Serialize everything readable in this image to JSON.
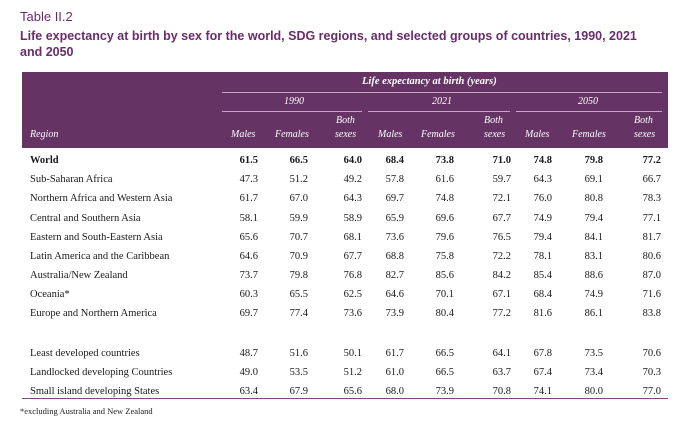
{
  "table_label": "Table II.2",
  "title": "Life expectancy at birth by sex for the world, SDG regions, and selected groups of countries, 1990, 2021 and 2050",
  "header": {
    "group_title": "Life expectancy at birth (years)",
    "years": [
      "1990",
      "2021",
      "2050"
    ],
    "region_label": "Region",
    "col_males": "Males",
    "col_females": "Females",
    "col_both_1": "Both",
    "col_both_2": "sexes"
  },
  "rows": [
    {
      "region": "World",
      "bold": true,
      "values": [
        "61.5",
        "66.5",
        "64.0",
        "68.4",
        "73.8",
        "71.0",
        "74.8",
        "79.8",
        "77.2"
      ]
    },
    {
      "region": "Sub-Saharan Africa",
      "values": [
        "47.3",
        "51.2",
        "49.2",
        "57.8",
        "61.6",
        "59.7",
        "64.3",
        "69.1",
        "66.7"
      ]
    },
    {
      "region": "Northern Africa and Western Asia",
      "values": [
        "61.7",
        "67.0",
        "64.3",
        "69.7",
        "74.8",
        "72.1",
        "76.0",
        "80.8",
        "78.3"
      ]
    },
    {
      "region": "Central and Southern Asia",
      "values": [
        "58.1",
        "59.9",
        "58.9",
        "65.9",
        "69.6",
        "67.7",
        "74.9",
        "79.4",
        "77.1"
      ]
    },
    {
      "region": "Eastern and South-Eastern Asia",
      "values": [
        "65.6",
        "70.7",
        "68.1",
        "73.6",
        "79.6",
        "76.5",
        "79.4",
        "84.1",
        "81.7"
      ]
    },
    {
      "region": "Latin America and the Caribbean",
      "values": [
        "64.6",
        "70.9",
        "67.7",
        "68.8",
        "75.8",
        "72.2",
        "78.1",
        "83.1",
        "80.6"
      ]
    },
    {
      "region": "Australia/New Zealand",
      "values": [
        "73.7",
        "79.8",
        "76.8",
        "82.7",
        "85.6",
        "84.2",
        "85.4",
        "88.6",
        "87.0"
      ]
    },
    {
      "region": "Oceania*",
      "values": [
        "60.3",
        "65.5",
        "62.5",
        "64.6",
        "70.1",
        "67.1",
        "68.4",
        "74.9",
        "71.6"
      ]
    },
    {
      "region": "Europe and Northern America",
      "values": [
        "69.7",
        "77.4",
        "73.6",
        "73.9",
        "80.4",
        "77.2",
        "81.6",
        "86.1",
        "83.8"
      ]
    },
    {
      "region": "Least developed countries",
      "values": [
        "48.7",
        "51.6",
        "50.1",
        "61.7",
        "66.5",
        "64.1",
        "67.8",
        "73.5",
        "70.6"
      ]
    },
    {
      "region": "Landlocked developing Countries",
      "values": [
        "49.0",
        "53.5",
        "51.2",
        "61.0",
        "66.5",
        "63.7",
        "67.4",
        "73.4",
        "70.3"
      ]
    },
    {
      "region": "Small island developing States",
      "values": [
        "63.4",
        "67.9",
        "65.6",
        "68.0",
        "73.9",
        "70.8",
        "74.1",
        "80.0",
        "77.0"
      ]
    }
  ],
  "footnote": "*excluding Australia and New Zealand"
}
